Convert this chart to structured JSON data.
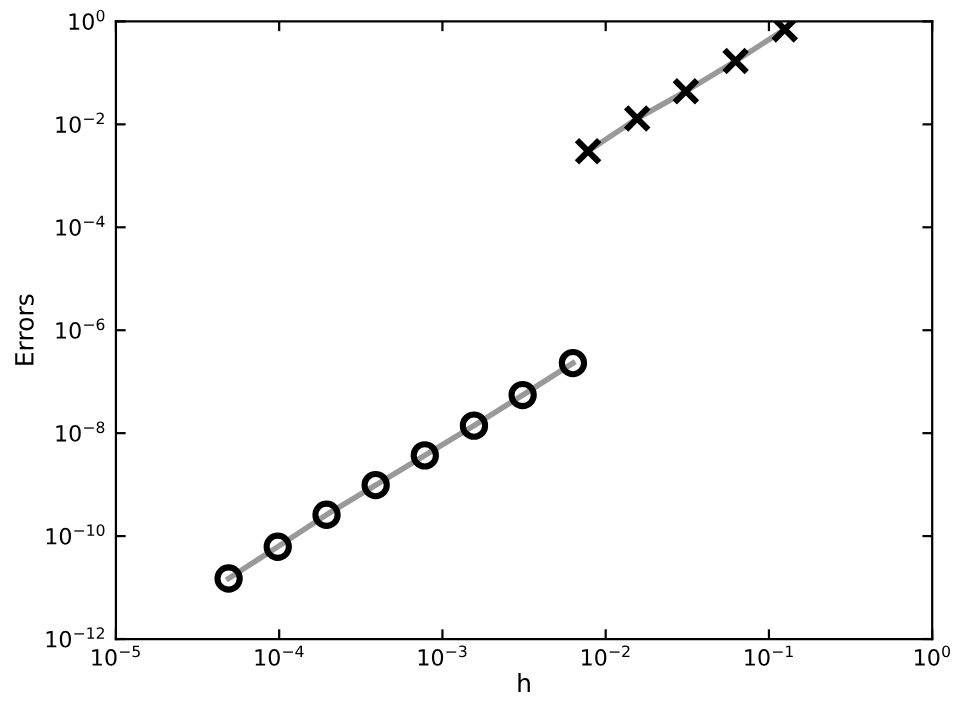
{
  "chart_data": {
    "type": "line",
    "xlabel": "h",
    "ylabel": "Errors",
    "log": "xy",
    "xlim": [
      1e-05,
      1
    ],
    "ylim": [
      1e-12,
      1
    ],
    "xticks": [
      {
        "value": 1e-05,
        "label": "10$^{−5}$"
      },
      {
        "value": 0.0001,
        "label": "10$^{−4}$"
      },
      {
        "value": 0.001,
        "label": "10$^{−3}$"
      },
      {
        "value": 0.01,
        "label": "10$^{−2}$"
      },
      {
        "value": 0.1,
        "label": "10$^{−1}$"
      },
      {
        "value": 1,
        "label": "10$^{0}$"
      }
    ],
    "yticks": [
      {
        "value": 1e-12,
        "label": "10$^{−12}$"
      },
      {
        "value": 1e-10,
        "label": "10$^{−10}$"
      },
      {
        "value": 1e-08,
        "label": "10$^{−8}$"
      },
      {
        "value": 1e-06,
        "label": "10$^{−6}$"
      },
      {
        "value": 0.0001,
        "label": "10$^{−4}$"
      },
      {
        "value": 0.01,
        "label": "10$^{−2}$"
      },
      {
        "value": 1,
        "label": "10$^{0}$"
      }
    ],
    "grid": false,
    "legend": false,
    "line_style": "solid",
    "series": [
      {
        "color": "#000000",
        "marker": "circle",
        "x": [
          4.9e-05,
          9.8e-05,
          0.000195,
          0.00039,
          0.00078,
          0.00156,
          0.0031,
          0.0063
        ],
        "values": [
          1.5e-11,
          6.2e-11,
          2.6e-10,
          9.8e-10,
          3.7e-09,
          1.4e-08,
          5.5e-08,
          2.3e-07
        ]
      },
      {
        "color": "#000000",
        "marker": "cross",
        "x": [
          0.0078,
          0.0156,
          0.031,
          0.0625,
          0.125
        ],
        "values": [
          0.003,
          0.013,
          0.044,
          0.17,
          0.7
        ]
      }
    ]
  }
}
